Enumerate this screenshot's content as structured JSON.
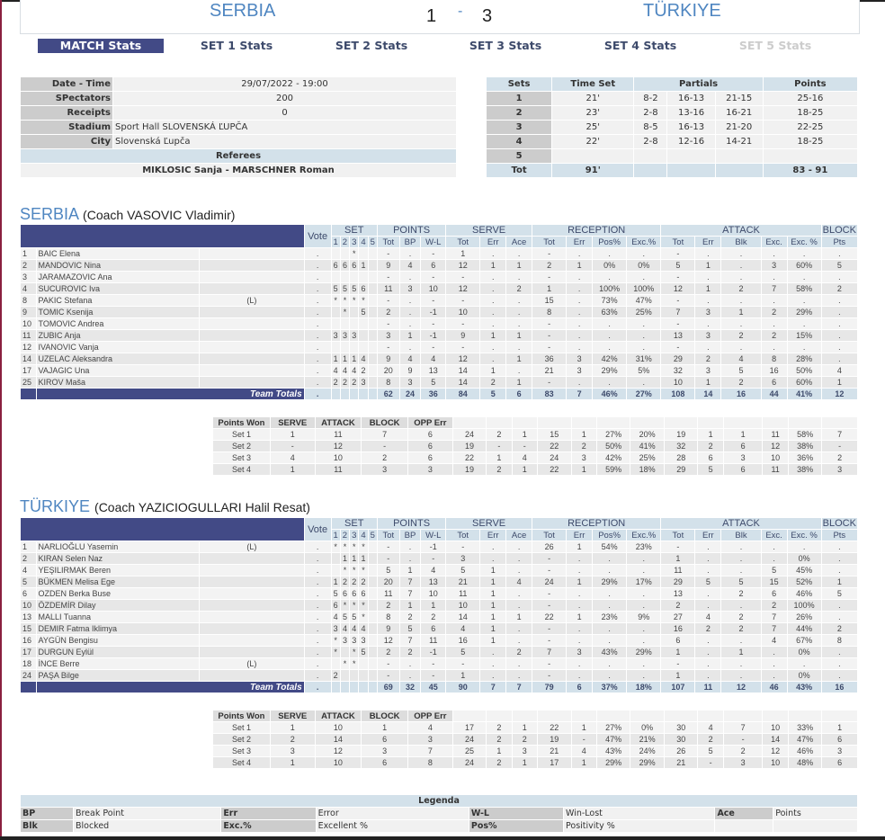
{
  "match": {
    "home": "SERBIA",
    "away": "TÜRKIYE",
    "home_sets": "1",
    "separator": "-",
    "away_sets": "3"
  },
  "tabs": [
    {
      "label": "MATCH Stats",
      "state": "active"
    },
    {
      "label": "SET 1 Stats",
      "state": "normal"
    },
    {
      "label": "SET 2 Stats",
      "state": "normal"
    },
    {
      "label": "SET 3 Stats",
      "state": "normal"
    },
    {
      "label": "SET 4 Stats",
      "state": "normal"
    },
    {
      "label": "SET 5 Stats",
      "state": "disabled"
    }
  ],
  "info": {
    "rows": [
      {
        "label": "Date - Time",
        "value": "29/07/2022 - 19:00",
        "align": "center"
      },
      {
        "label": "SPectators",
        "value": "200",
        "align": "center"
      },
      {
        "label": "Receipts",
        "value": "0",
        "align": "center"
      },
      {
        "label": "Stadium",
        "value": "Sport Hall SLOVENSKÁ ĽUPČA",
        "align": "left"
      },
      {
        "label": "City",
        "value": "Slovenská Ľupča",
        "align": "left"
      }
    ],
    "referees_label": "Referees",
    "referees": "MIKLOSIC Sanja - MARSCHNER Roman"
  },
  "sets_table": {
    "headers": {
      "sets": "Sets",
      "time": "Time Set",
      "partials": "Partials",
      "points": "Points"
    },
    "rows": [
      {
        "set": "1",
        "time": "21'",
        "p1": "8-2",
        "p2": "16-13",
        "p3": "21-15",
        "points": "25-16"
      },
      {
        "set": "2",
        "time": "23'",
        "p1": "2-8",
        "p2": "13-16",
        "p3": "16-21",
        "points": "18-25"
      },
      {
        "set": "3",
        "time": "25'",
        "p1": "8-5",
        "p2": "16-13",
        "p3": "21-20",
        "points": "22-25"
      },
      {
        "set": "4",
        "time": "22'",
        "p1": "2-8",
        "p2": "12-16",
        "p3": "14-21",
        "points": "18-25"
      },
      {
        "set": "5",
        "time": "",
        "p1": "",
        "p2": "",
        "p3": "",
        "points": ""
      }
    ],
    "total": {
      "label": "Tot",
      "time": "91'",
      "points": "83 - 91"
    }
  },
  "headers": {
    "vote": "Vote",
    "set": "SET",
    "points": "POINTS",
    "serve": "SERVE",
    "reception": "RECEPTION",
    "attack": "ATTACK",
    "block": "BLOCK",
    "sub": [
      "1",
      "2",
      "3",
      "4",
      "5",
      "Tot",
      "BP",
      "W-L",
      "Tot",
      "Err",
      "Ace",
      "Tot",
      "Err",
      "Pos%",
      "Exc.%",
      "Tot",
      "Err",
      "Blk",
      "Exc.",
      "Exc. %",
      "Pts"
    ],
    "team_totals": "Team Totals",
    "points_won": [
      "Points Won",
      "SERVE",
      "ATTACK",
      "BLOCK",
      "OPP Err"
    ]
  },
  "teams": [
    {
      "name": "SERBIA",
      "coach": "(Coach VASOVIC Vladimir)",
      "players": [
        [
          "1",
          "BAIC Elena",
          "",
          ".",
          "",
          "",
          "*",
          "",
          "",
          "-",
          ".",
          "-",
          "1",
          ".",
          ".",
          "-",
          ".",
          ".",
          ".",
          "-",
          ".",
          ".",
          ".",
          ".",
          "."
        ],
        [
          "2",
          "MANDOVIC Nina",
          "",
          ".",
          "6",
          "6",
          "6",
          "1",
          "",
          "9",
          "4",
          "6",
          "12",
          "1",
          "1",
          "2",
          "1",
          "0%",
          "0%",
          "5",
          "1",
          ".",
          "3",
          "60%",
          "5"
        ],
        [
          "3",
          "JARAMAZOVIC Ana",
          "",
          ".",
          "",
          "",
          "",
          "",
          "",
          "-",
          ".",
          "-",
          "-",
          ".",
          ".",
          "-",
          ".",
          ".",
          ".",
          "-",
          ".",
          ".",
          ".",
          ".",
          "."
        ],
        [
          "4",
          "SUCUROVIC Iva",
          "",
          ".",
          "5",
          "5",
          "5",
          "6",
          "",
          "11",
          "3",
          "10",
          "12",
          ".",
          "2",
          "1",
          ".",
          "100%",
          "100%",
          "12",
          "1",
          "2",
          "7",
          "58%",
          "2"
        ],
        [
          "8",
          "PAKIC Stefana",
          "(L)",
          ".",
          "*",
          "*",
          "*",
          "*",
          "",
          "-",
          ".",
          "-",
          "-",
          ".",
          ".",
          "15",
          ".",
          "73%",
          "47%",
          "-",
          ".",
          ".",
          ".",
          ".",
          "."
        ],
        [
          "9",
          "TOMIC Ksenija",
          "",
          ".",
          "",
          "*",
          "",
          "5",
          "",
          "2",
          ".",
          "-1",
          "10",
          ".",
          ".",
          "8",
          ".",
          "63%",
          "25%",
          "7",
          "3",
          "1",
          "2",
          "29%",
          "."
        ],
        [
          "10",
          "TOMOVIC Andrea",
          "",
          ".",
          "",
          "",
          "",
          "",
          "",
          "-",
          ".",
          "-",
          "-",
          ".",
          ".",
          "-",
          ".",
          ".",
          ".",
          "-",
          ".",
          ".",
          ".",
          ".",
          "."
        ],
        [
          "11",
          "ZUBIC Anja",
          "",
          ".",
          "3",
          "3",
          "3",
          "",
          "",
          "3",
          "1",
          "-1",
          "9",
          "1",
          "1",
          "-",
          ".",
          ".",
          ".",
          "13",
          "3",
          "2",
          "2",
          "15%",
          "."
        ],
        [
          "12",
          "IVANOVIC Vanja",
          "",
          ".",
          "",
          "",
          "",
          "",
          "",
          "-",
          ".",
          "-",
          "-",
          ".",
          ".",
          "-",
          ".",
          ".",
          ".",
          "-",
          ".",
          ".",
          ".",
          ".",
          "."
        ],
        [
          "14",
          "UZELAC Aleksandra",
          "",
          ".",
          "1",
          "1",
          "1",
          "4",
          "",
          "9",
          "4",
          "4",
          "12",
          ".",
          "1",
          "36",
          "3",
          "42%",
          "31%",
          "29",
          "2",
          "4",
          "8",
          "28%",
          "."
        ],
        [
          "17",
          "VAJAGIC Una",
          "",
          ".",
          "4",
          "4",
          "4",
          "2",
          "",
          "20",
          "9",
          "13",
          "14",
          "1",
          ".",
          "21",
          "3",
          "29%",
          "5%",
          "32",
          "3",
          "5",
          "16",
          "50%",
          "4"
        ],
        [
          "25",
          "KIROV Maša",
          "",
          ".",
          "2",
          "2",
          "2",
          "3",
          "",
          "8",
          "3",
          "5",
          "14",
          "2",
          "1",
          "-",
          ".",
          ".",
          ".",
          "10",
          "1",
          "2",
          "6",
          "60%",
          "1"
        ]
      ],
      "totals": [
        ".",
        "",
        "",
        "",
        "",
        "",
        "62",
        "24",
        "36",
        "84",
        "5",
        "6",
        "83",
        "7",
        "46%",
        "27%",
        "108",
        "14",
        "16",
        "44",
        "41%",
        "12"
      ],
      "points_won": [
        {
          "label": "Set 1",
          "vals": [
            "1",
            "11",
            "7",
            "6"
          ],
          "tail": [
            "24",
            "2",
            "1",
            "15",
            "1",
            "27%",
            "20%",
            "19",
            "1",
            "1",
            "11",
            "58%",
            "7"
          ]
        },
        {
          "label": "Set 2",
          "vals": [
            "-",
            "12",
            "-",
            "6"
          ],
          "tail": [
            "19",
            "-",
            "-",
            "22",
            "2",
            "50%",
            "41%",
            "32",
            "2",
            "6",
            "12",
            "38%",
            "-"
          ]
        },
        {
          "label": "Set 3",
          "vals": [
            "4",
            "10",
            "2",
            "6"
          ],
          "tail": [
            "22",
            "1",
            "4",
            "24",
            "3",
            "42%",
            "25%",
            "28",
            "6",
            "3",
            "10",
            "36%",
            "2"
          ]
        },
        {
          "label": "Set 4",
          "vals": [
            "1",
            "11",
            "3",
            "3"
          ],
          "tail": [
            "19",
            "2",
            "1",
            "22",
            "1",
            "59%",
            "18%",
            "29",
            "5",
            "6",
            "11",
            "38%",
            "3"
          ]
        }
      ]
    },
    {
      "name": "TÜRKIYE",
      "coach": "(Coach YAZICIOGULLARI Halil Resat)",
      "players": [
        [
          "1",
          "NARLIOĞLU Yasemin",
          "(L)",
          ".",
          "*",
          "*",
          "*",
          "*",
          "",
          "-",
          ".",
          "-1",
          "-",
          ".",
          ".",
          "26",
          "1",
          "54%",
          "23%",
          "-",
          ".",
          ".",
          ".",
          ".",
          "."
        ],
        [
          "2",
          "KIRAN Selen Naz",
          "",
          ".",
          "",
          "1",
          "1",
          "1",
          "",
          "-",
          ".",
          "-",
          "3",
          ".",
          ".",
          "-",
          ".",
          ".",
          ".",
          "1",
          ".",
          ".",
          ".",
          "0%",
          "."
        ],
        [
          "4",
          "YEŞILIRMAK Beren",
          "",
          ".",
          "",
          "*",
          "*",
          "*",
          "",
          "5",
          "1",
          "4",
          "5",
          "1",
          ".",
          "-",
          ".",
          ".",
          ".",
          "11",
          ".",
          ".",
          "5",
          "45%",
          "."
        ],
        [
          "5",
          "BÜKMEN Melisa Ege",
          "",
          ".",
          "1",
          "2",
          "2",
          "2",
          "",
          "20",
          "7",
          "13",
          "21",
          "1",
          "4",
          "24",
          "1",
          "29%",
          "17%",
          "29",
          "5",
          "5",
          "15",
          "52%",
          "1"
        ],
        [
          "6",
          "OZDEN Berka Buse",
          "",
          ".",
          "5",
          "6",
          "6",
          "6",
          "",
          "11",
          "7",
          "10",
          "11",
          "1",
          ".",
          "-",
          ".",
          ".",
          ".",
          "13",
          ".",
          "2",
          "6",
          "46%",
          "5"
        ],
        [
          "10",
          "ÖZDEMİR Dilay",
          "",
          ".",
          "6",
          "*",
          "*",
          "*",
          "",
          "2",
          "1",
          "1",
          "10",
          "1",
          ".",
          "-",
          ".",
          ".",
          ".",
          "2",
          ".",
          ".",
          "2",
          "100%",
          "."
        ],
        [
          "13",
          "MALLI Tuanna",
          "",
          ".",
          "4",
          "5",
          "5",
          "*",
          "",
          "8",
          "2",
          "2",
          "14",
          "1",
          "1",
          "22",
          "1",
          "23%",
          "9%",
          "27",
          "4",
          "2",
          "7",
          "26%",
          "."
        ],
        [
          "15",
          "DEMIR Fatma Iklimya",
          "",
          ".",
          "3",
          "4",
          "4",
          "4",
          "",
          "9",
          "5",
          "6",
          "4",
          "1",
          ".",
          "-",
          ".",
          ".",
          ".",
          "16",
          "2",
          "2",
          "7",
          "44%",
          "2"
        ],
        [
          "16",
          "AYGÜN Bengisu",
          "",
          ".",
          "*",
          "3",
          "3",
          "3",
          "",
          "12",
          "7",
          "11",
          "16",
          "1",
          ".",
          "-",
          ".",
          ".",
          ".",
          "6",
          ".",
          ".",
          "4",
          "67%",
          "8"
        ],
        [
          "17",
          "DURGUN Eylül",
          "",
          ".",
          "*",
          "",
          "*",
          "5",
          "",
          "2",
          "2",
          "-1",
          "5",
          ".",
          "2",
          "7",
          "3",
          "43%",
          "29%",
          "1",
          ".",
          "1",
          ".",
          "0%",
          "."
        ],
        [
          "18",
          "İNCE Berre",
          "(L)",
          ".",
          "",
          "*",
          "*",
          "",
          "",
          "-",
          ".",
          "-",
          "-",
          ".",
          ".",
          "-",
          ".",
          ".",
          ".",
          "-",
          ".",
          ".",
          ".",
          ".",
          "."
        ],
        [
          "24",
          "PAŞA Bilge",
          "",
          ".",
          "2",
          "",
          "",
          "",
          "",
          "-",
          ".",
          "-",
          "1",
          ".",
          ".",
          "-",
          ".",
          ".",
          ".",
          "1",
          ".",
          ".",
          ".",
          "0%",
          "."
        ]
      ],
      "totals": [
        ".",
        "",
        "",
        "",
        "",
        "",
        "69",
        "32",
        "45",
        "90",
        "7",
        "7",
        "79",
        "6",
        "37%",
        "18%",
        "107",
        "11",
        "12",
        "46",
        "43%",
        "16"
      ],
      "points_won": [
        {
          "label": "Set 1",
          "vals": [
            "1",
            "10",
            "1",
            "4"
          ],
          "tail": [
            "17",
            "2",
            "1",
            "22",
            "1",
            "27%",
            "0%",
            "30",
            "4",
            "7",
            "10",
            "33%",
            "1"
          ]
        },
        {
          "label": "Set 2",
          "vals": [
            "2",
            "14",
            "6",
            "3"
          ],
          "tail": [
            "24",
            "2",
            "2",
            "19",
            "-",
            "47%",
            "21%",
            "30",
            "2",
            "-",
            "14",
            "47%",
            "6"
          ]
        },
        {
          "label": "Set 3",
          "vals": [
            "3",
            "12",
            "3",
            "7"
          ],
          "tail": [
            "25",
            "1",
            "3",
            "21",
            "4",
            "43%",
            "24%",
            "26",
            "5",
            "2",
            "12",
            "46%",
            "3"
          ]
        },
        {
          "label": "Set 4",
          "vals": [
            "1",
            "10",
            "6",
            "8"
          ],
          "tail": [
            "24",
            "2",
            "1",
            "17",
            "1",
            "29%",
            "29%",
            "21",
            "-",
            "3",
            "10",
            "48%",
            "6"
          ]
        }
      ]
    }
  ],
  "legend": {
    "title": "Legenda",
    "rows": [
      [
        {
          "k": "BP",
          "v": "Break Point"
        },
        {
          "k": "Err",
          "v": "Error"
        },
        {
          "k": "W-L",
          "v": "Win-Lost"
        },
        {
          "k": "Ace",
          "v": "Points"
        }
      ],
      [
        {
          "k": "Blk",
          "v": "Blocked"
        },
        {
          "k": "Exc.%",
          "v": "Excellent %"
        },
        {
          "k": "Pos%",
          "v": "Positivity %"
        },
        {
          "k": "",
          "v": ""
        }
      ]
    ]
  },
  "colors": {
    "accent_blue": "#424a86",
    "header_light": "#d3e1ea",
    "team_title": "#4f86c1"
  }
}
